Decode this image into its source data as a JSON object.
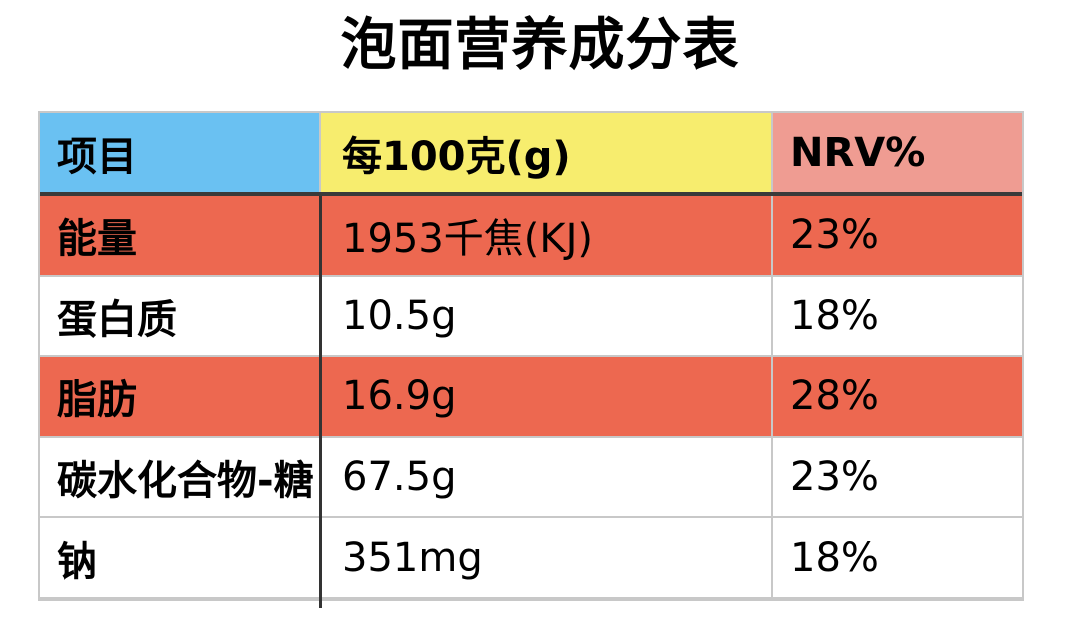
{
  "page": {
    "title": "泡面营养成分表"
  },
  "table": {
    "header": {
      "item": "项目",
      "per100g": "每100克(g)",
      "nrv": "NRV%"
    },
    "rows": [
      {
        "item": "能量",
        "per100g": "1953千焦(KJ)",
        "nrv": "23%",
        "highlight": true
      },
      {
        "item": "蛋白质",
        "per100g": "10.5g",
        "nrv": "18%",
        "highlight": false
      },
      {
        "item": "脂肪",
        "per100g": "16.9g",
        "nrv": "28%",
        "highlight": true
      },
      {
        "item": "碳水化合物-糖",
        "per100g": "67.5g",
        "nrv": "23%",
        "highlight": false
      },
      {
        "item": "钠",
        "per100g": "351mg",
        "nrv": "18%",
        "highlight": false
      }
    ],
    "colors": {
      "header_item_bg": "#6ac1f2",
      "header_per100g_bg": "#f7ed6e",
      "header_nrv_bg": "#ef9c92",
      "highlight_row_bg": "#ed6850",
      "plain_row_bg": "#ffffff",
      "grid_line": "#c8c8c8",
      "dark_line": "#333333",
      "text": "#000000"
    }
  },
  "chart_data": {
    "type": "table",
    "title": "泡面营养成分表",
    "columns": [
      "项目",
      "每100克(g)",
      "NRV%"
    ],
    "rows": [
      [
        "能量",
        "1953千焦(KJ)",
        "23%"
      ],
      [
        "蛋白质",
        "10.5g",
        "18%"
      ],
      [
        "脂肪",
        "16.9g",
        "28%"
      ],
      [
        "碳水化合物-糖",
        "67.5g",
        "23%"
      ],
      [
        "钠",
        "351mg",
        "18%"
      ]
    ],
    "notes": {
      "highlighted_rows": [
        "能量",
        "脂肪"
      ],
      "layout": "header row colored blue/yellow/pink; alternating highlighted data rows in tomato red"
    }
  }
}
